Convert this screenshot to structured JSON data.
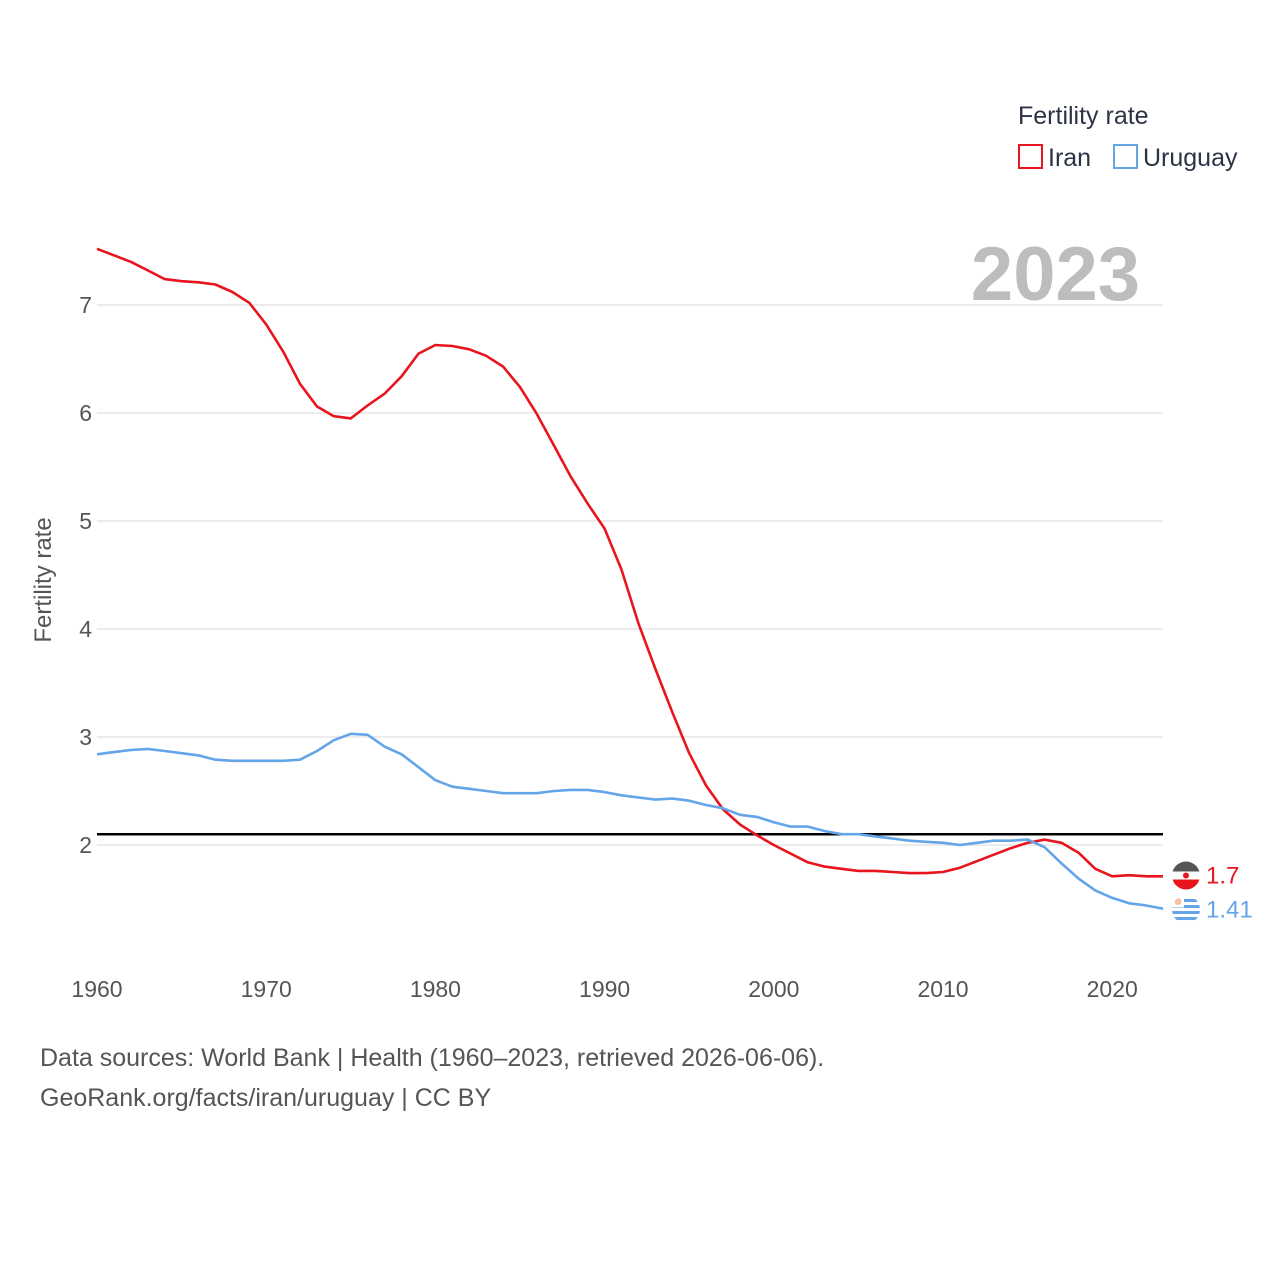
{
  "chart_data": {
    "type": "line",
    "legend_title": "Fertility rate",
    "ylabel": "Fertility rate",
    "year_label": "2023",
    "xlim": [
      1960,
      2023
    ],
    "ylim": [
      1.0,
      7.55
    ],
    "x_ticks": [
      1960,
      1970,
      1980,
      1990,
      2000,
      2010,
      2020
    ],
    "y_ticks": [
      2,
      3,
      4,
      5,
      6,
      7
    ],
    "reference_line": 2.1,
    "legend_placement": "top-right",
    "x": [
      1960,
      1961,
      1962,
      1963,
      1964,
      1965,
      1966,
      1967,
      1968,
      1969,
      1970,
      1971,
      1972,
      1973,
      1974,
      1975,
      1976,
      1977,
      1978,
      1979,
      1980,
      1981,
      1982,
      1983,
      1984,
      1985,
      1986,
      1987,
      1988,
      1989,
      1990,
      1991,
      1992,
      1993,
      1994,
      1995,
      1996,
      1997,
      1998,
      1999,
      2000,
      2001,
      2002,
      2003,
      2004,
      2005,
      2006,
      2007,
      2008,
      2009,
      2010,
      2011,
      2012,
      2013,
      2014,
      2015,
      2016,
      2017,
      2018,
      2019,
      2020,
      2021,
      2022,
      2023
    ],
    "series": [
      {
        "name": "Iran",
        "color": "#e8141e",
        "end_label": "1.7",
        "flag_icon": "iran-flag-icon",
        "values": [
          7.52,
          7.46,
          7.4,
          7.32,
          7.24,
          7.22,
          7.21,
          7.19,
          7.12,
          7.02,
          6.82,
          6.57,
          6.27,
          6.06,
          5.97,
          5.95,
          6.07,
          6.18,
          6.34,
          6.55,
          6.63,
          6.62,
          6.59,
          6.53,
          6.43,
          6.24,
          5.99,
          5.7,
          5.41,
          5.16,
          4.93,
          4.55,
          4.05,
          3.63,
          3.23,
          2.85,
          2.55,
          2.33,
          2.19,
          2.09,
          2.0,
          1.92,
          1.84,
          1.8,
          1.78,
          1.76,
          1.76,
          1.75,
          1.74,
          1.74,
          1.75,
          1.79,
          1.85,
          1.91,
          1.97,
          2.02,
          2.05,
          2.02,
          1.93,
          1.78,
          1.71,
          1.72,
          1.71,
          1.71
        ]
      },
      {
        "name": "Uruguay",
        "color": "#63a5e8",
        "end_label": "1.41",
        "flag_icon": "uruguay-flag-icon",
        "values": [
          2.84,
          2.86,
          2.88,
          2.89,
          2.87,
          2.85,
          2.83,
          2.79,
          2.78,
          2.78,
          2.78,
          2.78,
          2.79,
          2.87,
          2.97,
          3.03,
          3.02,
          2.91,
          2.84,
          2.72,
          2.6,
          2.54,
          2.52,
          2.5,
          2.48,
          2.48,
          2.48,
          2.5,
          2.51,
          2.51,
          2.49,
          2.46,
          2.44,
          2.42,
          2.43,
          2.41,
          2.37,
          2.34,
          2.28,
          2.26,
          2.21,
          2.17,
          2.17,
          2.13,
          2.1,
          2.1,
          2.08,
          2.06,
          2.04,
          2.03,
          2.02,
          2.0,
          2.02,
          2.04,
          2.04,
          2.05,
          1.98,
          1.83,
          1.69,
          1.58,
          1.51,
          1.46,
          1.44,
          1.41
        ]
      }
    ]
  },
  "footer": {
    "line1": "Data sources: World Bank | Health (1960–2023, retrieved 2026-06-06).",
    "line2": "GeoRank.org/facts/iran/uruguay | CC BY"
  }
}
